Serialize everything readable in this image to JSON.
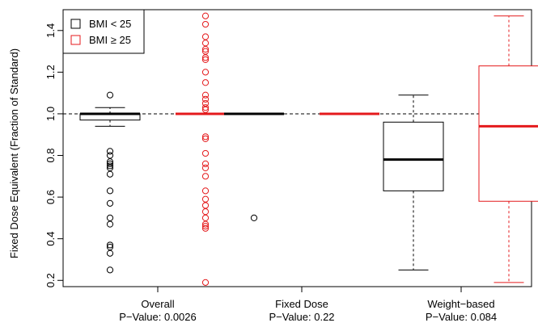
{
  "chart_data": {
    "type": "boxplot",
    "ylabel": "Fixed Dose Equivalent (Fraction of Standard)",
    "ylim": [
      0.17,
      1.5
    ],
    "yticks": [
      0.2,
      0.4,
      0.6,
      0.8,
      1.0,
      1.2,
      1.4
    ],
    "ytick_labels": [
      "0.2",
      "0.4",
      "0.6",
      "0.8",
      "1.0",
      "1.2",
      "1.4"
    ],
    "reference_line": 1.0,
    "legend": {
      "position": "top-left",
      "entries": [
        {
          "label": "BMI < 25",
          "color": "#000000"
        },
        {
          "label": "BMI ≥ 25",
          "color": "#e41a1c"
        }
      ]
    },
    "groups": [
      {
        "label": "Overall",
        "pvalue": "P−Value: 0.0026",
        "boxes": [
          {
            "series": "BMI < 25",
            "color": "#000000",
            "whisker_low": 0.94,
            "q1": 0.97,
            "median": 1.0,
            "q3": 1.0,
            "whisker_high": 1.03,
            "outliers": [
              1.09,
              0.82,
              0.8,
              0.77,
              0.76,
              0.75,
              0.74,
              0.71,
              0.63,
              0.57,
              0.5,
              0.47,
              0.37,
              0.36,
              0.33,
              0.25
            ]
          },
          {
            "series": "BMI ≥ 25",
            "color": "#e41a1c",
            "whisker_low": 1.0,
            "q1": 1.0,
            "median": 1.0,
            "q3": 1.0,
            "whisker_high": 1.0,
            "outliers": [
              1.47,
              1.43,
              1.37,
              1.34,
              1.31,
              1.3,
              1.27,
              1.26,
              1.2,
              1.15,
              1.09,
              1.07,
              1.05,
              1.03,
              1.02,
              0.89,
              0.88,
              0.81,
              0.76,
              0.74,
              0.7,
              0.63,
              0.59,
              0.56,
              0.53,
              0.5,
              0.47,
              0.46,
              0.45,
              0.19
            ]
          }
        ]
      },
      {
        "label": "Fixed Dose",
        "pvalue": "P−Value: 0.22",
        "boxes": [
          {
            "series": "BMI < 25",
            "color": "#000000",
            "whisker_low": 1.0,
            "q1": 1.0,
            "median": 1.0,
            "q3": 1.0,
            "whisker_high": 1.0,
            "outliers": [
              0.5
            ]
          },
          {
            "series": "BMI ≥ 25",
            "color": "#e41a1c",
            "whisker_low": 1.0,
            "q1": 1.0,
            "median": 1.0,
            "q3": 1.0,
            "whisker_high": 1.0,
            "outliers": []
          }
        ]
      },
      {
        "label": "Weight−based",
        "pvalue": "P−Value: 0.084",
        "boxes": [
          {
            "series": "BMI < 25",
            "color": "#000000",
            "whisker_low": 0.25,
            "q1": 0.63,
            "median": 0.78,
            "q3": 0.96,
            "whisker_high": 1.09,
            "outliers": []
          },
          {
            "series": "BMI ≥ 25",
            "color": "#e41a1c",
            "whisker_low": 0.19,
            "q1": 0.58,
            "median": 0.94,
            "q3": 1.23,
            "whisker_high": 1.47,
            "outliers": []
          }
        ]
      }
    ]
  }
}
